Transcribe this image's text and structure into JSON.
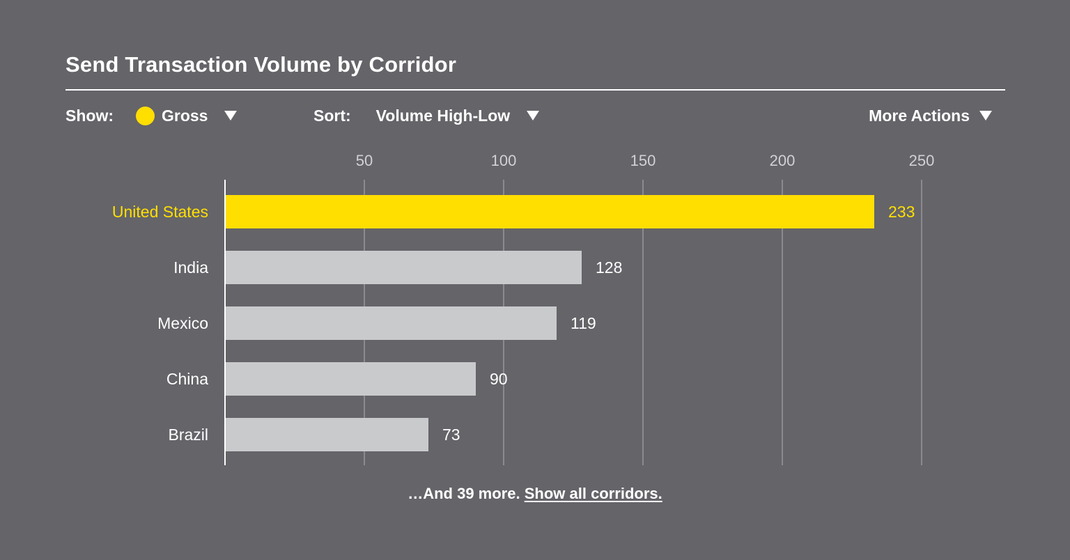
{
  "header": {
    "title": "Send Transaction Volume by Corridor"
  },
  "controls": {
    "show_label": "Show:",
    "show_value": "Gross",
    "sort_label": "Sort:",
    "sort_value": "Volume High-Low",
    "more_actions": "More Actions"
  },
  "chart_data": {
    "type": "bar",
    "orientation": "horizontal",
    "title": "Send Transaction Volume by Corridor",
    "categories": [
      "United States",
      "India",
      "Mexico",
      "China",
      "Brazil"
    ],
    "values": [
      233,
      128,
      119,
      90,
      73
    ],
    "value_labels": [
      "233",
      "128",
      "119",
      "90",
      "73"
    ],
    "ticks": [
      50,
      100,
      150,
      200,
      250
    ],
    "tick_labels": [
      "50",
      "100",
      "150",
      "200",
      "250"
    ],
    "xlim": [
      0,
      250
    ],
    "grid": true,
    "highlight_index": 0,
    "colors": {
      "highlight": "#ffdf00",
      "bar": "#c9cacc",
      "grid": "#8a8a8f",
      "background": "#646469",
      "text": "#ffffff"
    }
  },
  "footer": {
    "more_text": "…And 39 more.",
    "show_all_link": "Show all corridors."
  }
}
